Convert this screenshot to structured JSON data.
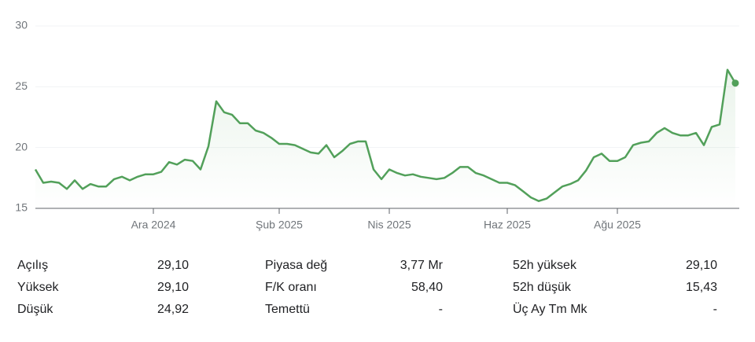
{
  "chart_data": {
    "type": "line",
    "categories": [
      null,
      null,
      null,
      null,
      null,
      null,
      null,
      null,
      null,
      null,
      null,
      null,
      null,
      null,
      null,
      "Ara 2024",
      null,
      null,
      null,
      null,
      null,
      null,
      null,
      null,
      null,
      null,
      null,
      null,
      null,
      null,
      null,
      "Şub 2025",
      null,
      null,
      null,
      null,
      null,
      null,
      null,
      null,
      null,
      null,
      null,
      null,
      null,
      "Nis 2025",
      null,
      null,
      null,
      null,
      null,
      null,
      null,
      null,
      null,
      null,
      null,
      null,
      null,
      null,
      "Haz 2025",
      null,
      null,
      null,
      null,
      null,
      null,
      null,
      null,
      null,
      null,
      null,
      null,
      null,
      "Ağu 2025",
      null,
      null,
      null,
      null,
      null,
      null,
      null,
      null,
      null,
      null,
      null,
      null,
      null,
      null,
      null
    ],
    "values": [
      18.2,
      17.1,
      17.2,
      17.1,
      16.6,
      17.3,
      16.6,
      17.0,
      16.8,
      16.8,
      17.4,
      17.6,
      17.3,
      17.6,
      17.8,
      17.8,
      18.0,
      18.8,
      18.6,
      19.0,
      18.9,
      18.2,
      20.1,
      23.8,
      22.9,
      22.7,
      22.0,
      22.0,
      21.4,
      21.2,
      20.8,
      20.3,
      20.3,
      20.2,
      19.9,
      19.6,
      19.5,
      20.2,
      19.2,
      19.7,
      20.3,
      20.5,
      20.5,
      18.2,
      17.4,
      18.2,
      17.9,
      17.7,
      17.8,
      17.6,
      17.5,
      17.4,
      17.5,
      17.9,
      18.4,
      18.4,
      17.9,
      17.7,
      17.4,
      17.1,
      17.1,
      16.9,
      16.4,
      15.9,
      15.6,
      15.8,
      16.3,
      16.8,
      17.0,
      17.3,
      18.1,
      19.2,
      19.5,
      18.9,
      18.9,
      19.2,
      20.2,
      20.4,
      20.5,
      21.2,
      21.6,
      21.2,
      21.0,
      21.0,
      21.2,
      20.2,
      21.7,
      21.9,
      26.4,
      25.3
    ],
    "color": "#52a05a",
    "ylim": [
      15,
      30
    ],
    "yticks": [
      15,
      20,
      25,
      30
    ],
    "grid": true
  },
  "stats": [
    [
      {
        "label": "Açılış",
        "value": "29,10"
      },
      {
        "label": "Piyasa değ",
        "value": "3,77 Mr"
      },
      {
        "label": "52h yüksek",
        "value": "29,10"
      }
    ],
    [
      {
        "label": "Yüksek",
        "value": "29,10"
      },
      {
        "label": "F/K oranı",
        "value": "58,40"
      },
      {
        "label": "52h düşük",
        "value": "15,43"
      }
    ],
    [
      {
        "label": "Düşük",
        "value": "24,92"
      },
      {
        "label": "Temettü",
        "value": "-"
      },
      {
        "label": "Üç Ay Tm Mk",
        "value": "-"
      }
    ]
  ]
}
